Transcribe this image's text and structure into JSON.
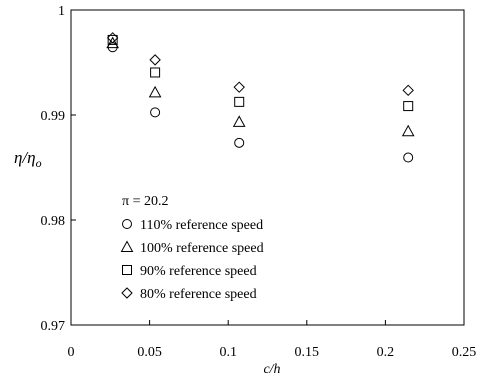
{
  "chart_data": {
    "type": "scatter",
    "xlabel": "c/h",
    "ylabel_main": "η/η",
    "ylabel_sub": "o",
    "xlim": [
      0,
      0.25
    ],
    "ylim": [
      0.97,
      1
    ],
    "xticks": [
      "0",
      "0.05",
      "0.1",
      "0.15",
      "0.2",
      "0.25"
    ],
    "yticks": [
      "0.97",
      "0.98",
      "0.99",
      "1"
    ],
    "grid": false,
    "legend_placement": "bottom-left inside",
    "legend_title": "π = 20.2",
    "series": [
      {
        "name": "110% reference speed",
        "marker": "circle",
        "x": [
          0.0265,
          0.0535,
          0.107,
          0.2145
        ],
        "y": [
          0.99645,
          0.99025,
          0.98735,
          0.98595
        ]
      },
      {
        "name": "100% reference speed",
        "marker": "triangle",
        "x": [
          0.0265,
          0.0535,
          0.107,
          0.2145
        ],
        "y": [
          0.99685,
          0.99215,
          0.98935,
          0.98845
        ]
      },
      {
        "name": "90% reference speed",
        "marker": "square",
        "x": [
          0.0265,
          0.0535,
          0.107,
          0.2145
        ],
        "y": [
          0.99715,
          0.99405,
          0.99125,
          0.99085
        ]
      },
      {
        "name": "80% reference speed",
        "marker": "diamond",
        "x": [
          0.0265,
          0.0535,
          0.107,
          0.2145
        ],
        "y": [
          0.99735,
          0.99525,
          0.99265,
          0.99235
        ]
      }
    ]
  }
}
